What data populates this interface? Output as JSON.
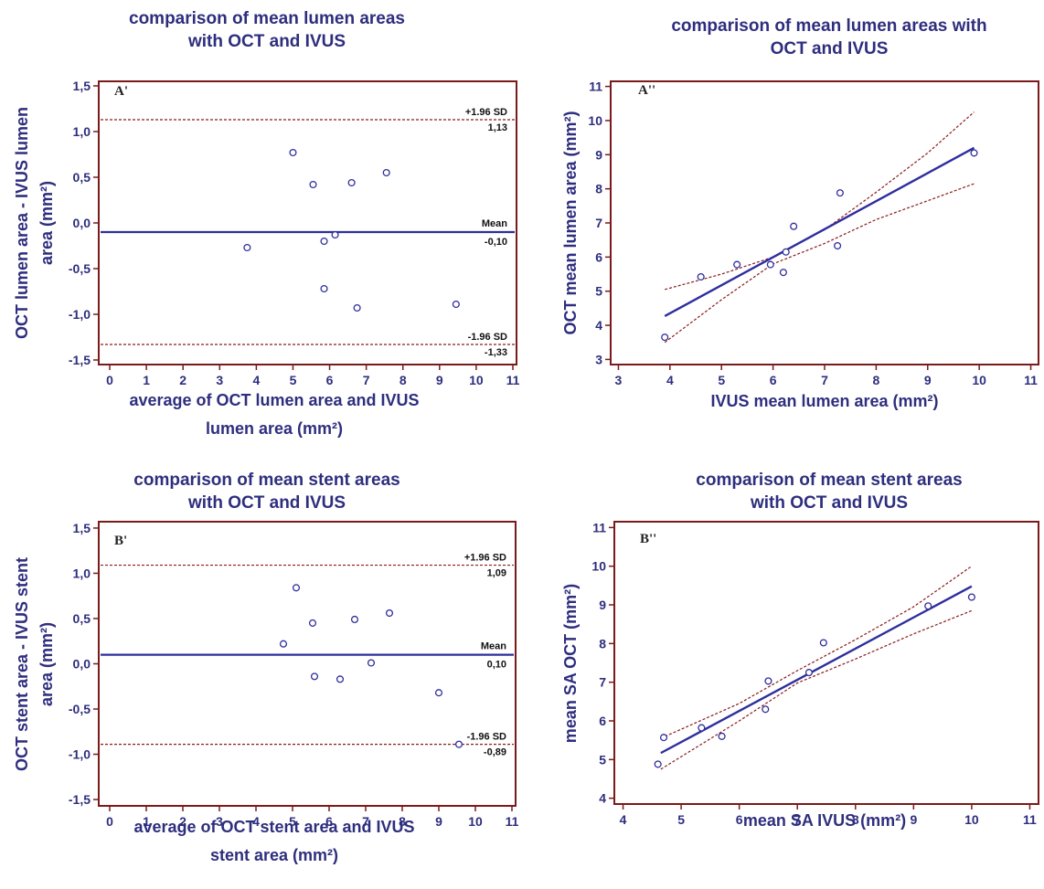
{
  "colors": {
    "axis": "#7a1a1a",
    "text": "#2e2e7e",
    "line": "#2e2e9e",
    "dashed": "#8b1a1a",
    "point": "#2e2e9e"
  },
  "chart_data": [
    {
      "type": "scatter",
      "kind": "bland-altman",
      "panel": "A'",
      "title_lines": [
        "comparison of mean lumen areas",
        "with OCT and IVUS"
      ],
      "xlabel_lines": [
        "average of OCT lumen area and IVUS",
        "lumen area (mm²)"
      ],
      "ylabel_lines": [
        "OCT lumen area - IVUS lumen",
        "area (mm²)"
      ],
      "xlim": [
        -0.3,
        11.1
      ],
      "ylim": [
        -1.55,
        1.55
      ],
      "xticks": [
        0,
        1,
        2,
        3,
        4,
        5,
        6,
        7,
        8,
        9,
        10,
        11
      ],
      "xtick_labels": [
        "0",
        "1",
        "2",
        "3",
        "4",
        "5",
        "6",
        "7",
        "8",
        "9",
        "10",
        "11"
      ],
      "yticks": [
        -1.5,
        -1.0,
        -0.5,
        0.0,
        0.5,
        1.0,
        1.5
      ],
      "ytick_labels": [
        "-1,5",
        "-1,0",
        "-0,5",
        "0,0",
        "0,5",
        "1,0",
        "1,5"
      ],
      "mean": {
        "value": -0.1,
        "name": "Mean",
        "label": "-0,10"
      },
      "upper": {
        "value": 1.13,
        "name": "+1.96 SD",
        "label": "1,13"
      },
      "lower": {
        "value": -1.33,
        "name": "-1.96 SD",
        "label": "-1,33"
      },
      "points": [
        [
          3.75,
          -0.27
        ],
        [
          5.0,
          0.77
        ],
        [
          5.55,
          0.42
        ],
        [
          5.85,
          -0.2
        ],
        [
          6.15,
          -0.13
        ],
        [
          5.85,
          -0.72
        ],
        [
          6.6,
          0.44
        ],
        [
          6.75,
          -0.93
        ],
        [
          7.55,
          0.55
        ],
        [
          9.45,
          -0.89
        ]
      ]
    },
    {
      "type": "scatter",
      "kind": "regression",
      "panel": "A''",
      "title_lines": [
        "comparison of mean lumen areas with",
        "OCT and IVUS"
      ],
      "xlabel_lines": [
        "IVUS mean lumen area (mm²)"
      ],
      "ylabel_lines": [
        "OCT mean lumen area (mm²)"
      ],
      "xlim": [
        2.85,
        11.15
      ],
      "ylim": [
        2.85,
        11.15
      ],
      "xticks": [
        3,
        4,
        5,
        6,
        7,
        8,
        9,
        10,
        11
      ],
      "xtick_labels": [
        "3",
        "4",
        "5",
        "6",
        "7",
        "8",
        "9",
        "10",
        "11"
      ],
      "yticks": [
        3,
        4,
        5,
        6,
        7,
        8,
        9,
        10,
        11
      ],
      "ytick_labels": [
        "3",
        "4",
        "5",
        "6",
        "7",
        "8",
        "9",
        "10",
        "11"
      ],
      "fit": [
        [
          3.9,
          4.27
        ],
        [
          9.9,
          9.2
        ]
      ],
      "ci_upper": [
        [
          3.9,
          5.05
        ],
        [
          5.0,
          5.5
        ],
        [
          6.0,
          6.0
        ],
        [
          7.0,
          6.8
        ],
        [
          8.0,
          7.9
        ],
        [
          9.0,
          9.05
        ],
        [
          9.9,
          10.25
        ]
      ],
      "ci_lower": [
        [
          3.9,
          3.5
        ],
        [
          5.0,
          4.75
        ],
        [
          6.0,
          5.8
        ],
        [
          7.0,
          6.4
        ],
        [
          8.0,
          7.1
        ],
        [
          9.0,
          7.65
        ],
        [
          9.9,
          8.15
        ]
      ],
      "points": [
        [
          3.9,
          3.65
        ],
        [
          4.6,
          5.42
        ],
        [
          5.3,
          5.78
        ],
        [
          5.95,
          5.78
        ],
        [
          6.2,
          5.55
        ],
        [
          6.25,
          6.15
        ],
        [
          6.4,
          6.9
        ],
        [
          7.25,
          6.33
        ],
        [
          7.3,
          7.88
        ],
        [
          9.9,
          9.05
        ]
      ]
    },
    {
      "type": "scatter",
      "kind": "bland-altman",
      "panel": "B'",
      "title_lines": [
        "comparison of mean stent areas",
        "with OCT and IVUS"
      ],
      "xlabel_lines": [
        "average of OCT stent area and IVUS",
        "stent area (mm²)"
      ],
      "ylabel_lines": [
        "OCT stent area - IVUS stent",
        "area (mm²)"
      ],
      "xlim": [
        -0.3,
        11.1
      ],
      "ylim": [
        -1.57,
        1.57
      ],
      "xticks": [
        0,
        1,
        2,
        3,
        4,
        5,
        6,
        7,
        8,
        9,
        10,
        11
      ],
      "xtick_labels": [
        "0",
        "1",
        "2",
        "3",
        "4",
        "5",
        "6",
        "7",
        "8",
        "9",
        "10",
        "11"
      ],
      "yticks": [
        -1.5,
        -1.0,
        -0.5,
        0.0,
        0.5,
        1.0,
        1.5
      ],
      "ytick_labels": [
        "-1,5",
        "-1,0",
        "-0,5",
        "0,0",
        "0,5",
        "1,0",
        "1,5"
      ],
      "mean": {
        "value": 0.1,
        "name": "Mean",
        "label": "0,10"
      },
      "upper": {
        "value": 1.09,
        "name": "+1.96 SD",
        "label": "1,09"
      },
      "lower": {
        "value": -0.89,
        "name": "-1.96 SD",
        "label": "-0,89"
      },
      "points": [
        [
          4.75,
          0.22
        ],
        [
          5.1,
          0.84
        ],
        [
          5.55,
          0.45
        ],
        [
          5.6,
          -0.14
        ],
        [
          6.3,
          -0.17
        ],
        [
          6.7,
          0.49
        ],
        [
          7.15,
          0.01
        ],
        [
          7.65,
          0.56
        ],
        [
          9.0,
          -0.32
        ],
        [
          9.55,
          -0.89
        ]
      ]
    },
    {
      "type": "scatter",
      "kind": "regression",
      "panel": "B''",
      "title_lines": [
        "comparison of mean stent areas",
        "with OCT and IVUS"
      ],
      "xlabel_lines": [
        "mean SA IVUS (mm²)"
      ],
      "ylabel_lines": [
        "mean SA OCT (mm²)"
      ],
      "xlim": [
        3.85,
        11.15
      ],
      "ylim": [
        3.85,
        11.15
      ],
      "xticks": [
        4,
        5,
        6,
        7,
        8,
        9,
        10,
        11
      ],
      "xtick_labels": [
        "4",
        "5",
        "6",
        "7",
        "8",
        "9",
        "10",
        "11"
      ],
      "yticks": [
        4,
        5,
        6,
        7,
        8,
        9,
        10,
        11
      ],
      "ytick_labels": [
        "4",
        "5",
        "6",
        "7",
        "8",
        "9",
        "10",
        "11"
      ],
      "fit": [
        [
          4.65,
          5.17
        ],
        [
          10.0,
          9.48
        ]
      ],
      "ci_upper": [
        [
          4.65,
          5.55
        ],
        [
          6.0,
          6.45
        ],
        [
          7.0,
          7.3
        ],
        [
          8.0,
          8.1
        ],
        [
          9.0,
          8.95
        ],
        [
          10.0,
          10.0
        ]
      ],
      "ci_lower": [
        [
          4.65,
          4.75
        ],
        [
          6.0,
          6.0
        ],
        [
          7.0,
          6.98
        ],
        [
          8.0,
          7.6
        ],
        [
          9.0,
          8.25
        ],
        [
          10.0,
          8.85
        ]
      ],
      "points": [
        [
          4.6,
          4.88
        ],
        [
          4.7,
          5.57
        ],
        [
          5.35,
          5.82
        ],
        [
          5.7,
          5.6
        ],
        [
          6.45,
          6.3
        ],
        [
          6.5,
          7.03
        ],
        [
          7.2,
          7.25
        ],
        [
          7.45,
          8.02
        ],
        [
          9.25,
          8.97
        ],
        [
          10.0,
          9.2
        ]
      ]
    }
  ]
}
